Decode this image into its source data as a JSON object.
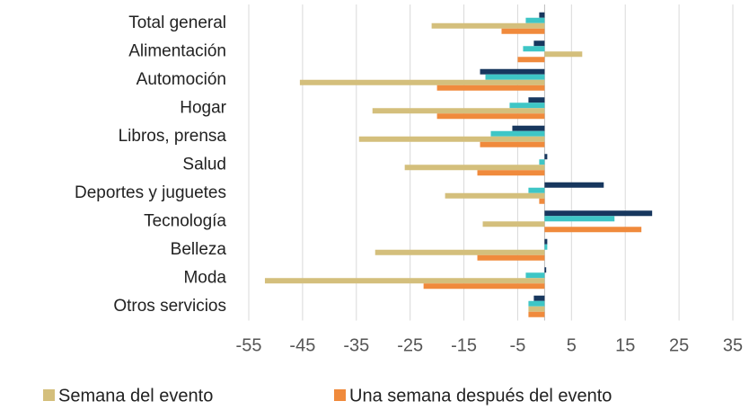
{
  "chart_data": {
    "type": "hbar",
    "categories": [
      "Total general",
      "Alimentación",
      "Automoción",
      "Hogar",
      "Libros, prensa",
      "Salud",
      "Deportes y juguetes",
      "Tecnología",
      "Belleza",
      "Moda",
      "Otros servicios"
    ],
    "series": [
      {
        "color": "#17375e",
        "values": [
          -1,
          -2,
          -12,
          -3,
          -6,
          0.5,
          11,
          20,
          0.5,
          0.3,
          -2
        ]
      },
      {
        "color": "#3ec6c6",
        "values": [
          -3.5,
          -4,
          -11,
          -6.5,
          -10,
          -1,
          -3,
          13,
          0.5,
          -3.5,
          -3
        ]
      },
      {
        "name": "Semana del evento",
        "color": "#d4bf7c",
        "values": [
          -21,
          7,
          -45.5,
          -32,
          -34.5,
          -26,
          -18.5,
          -11.5,
          -31.5,
          -52,
          -3
        ]
      },
      {
        "name": "Una semana después del evento",
        "color": "#f08a3c",
        "values": [
          -8,
          -5,
          -20,
          -20,
          -12,
          -12.5,
          -1,
          18,
          -12.5,
          -22.5,
          -3
        ]
      }
    ],
    "xlim": [
      -55,
      35
    ],
    "xticks": [
      -55,
      -45,
      -35,
      -25,
      -15,
      -5,
      5,
      15,
      25,
      35
    ],
    "grid": true
  }
}
